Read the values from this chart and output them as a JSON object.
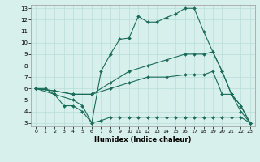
{
  "xlabel": "Humidex (Indice chaleur)",
  "background_color": "#d8f0ec",
  "grid_color": "#b8ddd8",
  "line_color": "#1a6b5a",
  "xlim": [
    -0.5,
    23.5
  ],
  "ylim": [
    2.7,
    13.3
  ],
  "xticks": [
    0,
    1,
    2,
    3,
    4,
    5,
    6,
    7,
    8,
    9,
    10,
    11,
    12,
    13,
    14,
    15,
    16,
    17,
    18,
    19,
    20,
    21,
    22,
    23
  ],
  "yticks": [
    3,
    4,
    5,
    6,
    7,
    8,
    9,
    10,
    11,
    12,
    13
  ],
  "lines": [
    {
      "x": [
        0,
        2,
        4,
        5,
        6,
        7,
        8,
        9,
        10,
        11,
        12,
        13,
        14,
        15,
        16,
        17,
        18,
        19,
        20,
        21,
        22,
        23
      ],
      "y": [
        6.0,
        5.5,
        5.0,
        4.5,
        3.0,
        7.5,
        9.0,
        10.3,
        10.4,
        12.3,
        11.8,
        11.8,
        12.2,
        12.5,
        13.0,
        13.0,
        11.0,
        9.2,
        7.5,
        5.5,
        4.0,
        3.0
      ]
    },
    {
      "x": [
        0,
        2,
        4,
        6,
        8,
        10,
        12,
        14,
        16,
        17,
        18,
        19,
        20,
        21,
        22,
        23
      ],
      "y": [
        6.0,
        5.8,
        5.5,
        5.5,
        6.5,
        7.5,
        8.0,
        8.5,
        9.0,
        9.0,
        9.0,
        9.2,
        7.5,
        5.5,
        4.5,
        3.0
      ]
    },
    {
      "x": [
        0,
        2,
        4,
        6,
        8,
        10,
        12,
        14,
        16,
        17,
        18,
        19,
        20,
        21,
        22,
        23
      ],
      "y": [
        6.0,
        5.8,
        5.5,
        5.5,
        6.0,
        6.5,
        7.0,
        7.0,
        7.2,
        7.2,
        7.2,
        7.5,
        5.5,
        5.5,
        4.5,
        3.0
      ]
    },
    {
      "x": [
        0,
        1,
        2,
        3,
        4,
        5,
        6,
        7,
        8,
        9,
        10,
        11,
        12,
        13,
        14,
        15,
        16,
        17,
        18,
        19,
        20,
        21,
        22,
        23
      ],
      "y": [
        6.0,
        6.0,
        5.5,
        4.5,
        4.5,
        4.0,
        3.0,
        3.2,
        3.5,
        3.5,
        3.5,
        3.5,
        3.5,
        3.5,
        3.5,
        3.5,
        3.5,
        3.5,
        3.5,
        3.5,
        3.5,
        3.5,
        3.5,
        3.0
      ]
    }
  ]
}
